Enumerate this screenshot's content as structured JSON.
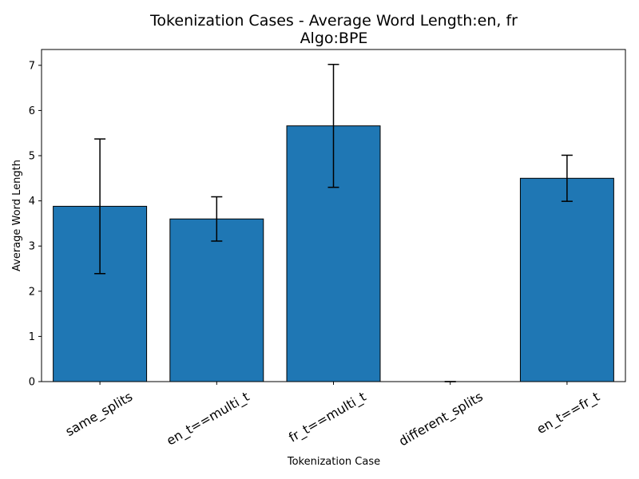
{
  "chart_data": {
    "type": "bar",
    "title": "Tokenization Cases - Average Word Length:en, fr",
    "subtitle": "Algo:BPE",
    "xlabel": "Tokenization Case",
    "ylabel": "Average Word Length",
    "categories": [
      "same_splits",
      "en_t==multi_t",
      "fr_t==multi_t",
      "different_splits",
      "en_t==fr_t"
    ],
    "values": [
      3.88,
      3.6,
      5.66,
      0.0,
      4.5
    ],
    "errors": [
      1.49,
      0.49,
      1.36,
      0.0,
      0.51
    ],
    "ylim": [
      0,
      7.35
    ],
    "yticks": [
      "0",
      "1",
      "2",
      "3",
      "4",
      "5",
      "6",
      "7"
    ],
    "grid": false,
    "legend": "none",
    "colors": {
      "bar": "#1f77b4",
      "edge": "#000000",
      "error": "#000000"
    }
  }
}
